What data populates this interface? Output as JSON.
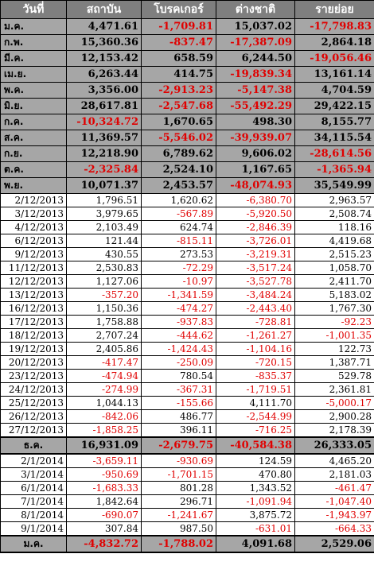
{
  "headers": [
    "วันที่",
    "สถาบัน",
    "โบรคเกอร์",
    "ต่างชาติ",
    "รายย่อย"
  ],
  "colors": {
    "header_bg": "#7f7f7f",
    "month_bg": "#a6a6a6",
    "negative": "#e00000"
  },
  "month_rows": [
    {
      "label": "ม.ค.",
      "values": [
        "4,471.61",
        "-1,709.81",
        "15,037.02",
        "-17,798.83"
      ]
    },
    {
      "label": "ก.พ.",
      "values": [
        "15,360.36",
        "-837.47",
        "-17,387.09",
        "2,864.18"
      ]
    },
    {
      "label": "มี.ค.",
      "values": [
        "12,153.42",
        "658.59",
        "6,244.50",
        "-19,056.46"
      ]
    },
    {
      "label": "เม.ย.",
      "values": [
        "6,263.44",
        "414.75",
        "-19,839.34",
        "13,161.14"
      ]
    },
    {
      "label": "พ.ค.",
      "values": [
        "3,356.00",
        "-2,913.23",
        "-5,147.38",
        "4,704.59"
      ]
    },
    {
      "label": "มิ.ย.",
      "values": [
        "28,617.81",
        "-2,547.68",
        "-55,492.29",
        "29,422.15"
      ]
    },
    {
      "label": "ก.ค.",
      "values": [
        "-10,324.72",
        "1,670.65",
        "498.30",
        "8,155.77"
      ]
    },
    {
      "label": "ส.ค.",
      "values": [
        "11,369.57",
        "-5,546.02",
        "-39,939.07",
        "34,115.54"
      ]
    },
    {
      "label": "ก.ย.",
      "values": [
        "12,218.90",
        "6,789.62",
        "9,606.02",
        "-28,614.56"
      ]
    },
    {
      "label": "ต.ค.",
      "values": [
        "-2,325.84",
        "2,524.10",
        "1,167.65",
        "-1,365.94"
      ]
    },
    {
      "label": "พ.ย.",
      "values": [
        "10,071.37",
        "2,453.57",
        "-48,074.93",
        "35,549.99"
      ]
    }
  ],
  "dec_rows": [
    {
      "label": "2/12/2013",
      "values": [
        "1,796.51",
        "1,620.62",
        "-6,380.70",
        "2,963.57"
      ]
    },
    {
      "label": "3/12/2013",
      "values": [
        "3,979.65",
        "-567.89",
        "-5,920.50",
        "2,508.74"
      ]
    },
    {
      "label": "4/12/2013",
      "values": [
        "2,103.49",
        "624.74",
        "-2,846.39",
        "118.16"
      ]
    },
    {
      "label": "6/12/2013",
      "values": [
        "121.44",
        "-815.11",
        "-3,726.01",
        "4,419.68"
      ]
    },
    {
      "label": "9/12/2013",
      "values": [
        "430.55",
        "273.53",
        "-3,219.31",
        "2,515.23"
      ]
    },
    {
      "label": "11/12/2013",
      "values": [
        "2,530.83",
        "-72.29",
        "-3,517.24",
        "1,058.70"
      ]
    },
    {
      "label": "12/12/2013",
      "values": [
        "1,127.06",
        "-10.97",
        "-3,527.78",
        "2,411.70"
      ]
    },
    {
      "label": "13/12/2013",
      "values": [
        "-357.20",
        "-1,341.59",
        "-3,484.24",
        "5,183.02"
      ]
    },
    {
      "label": "16/12/2013",
      "values": [
        "1,150.36",
        "-474.27",
        "-2,443.40",
        "1,767.30"
      ]
    },
    {
      "label": "17/12/2013",
      "values": [
        "1,758.88",
        "-937.83",
        "-728.81",
        "-92.23"
      ]
    },
    {
      "label": "18/12/2013",
      "values": [
        "2,707.24",
        "-444.62",
        "-1,261.27",
        "-1,001.35"
      ]
    },
    {
      "label": "19/12/2013",
      "values": [
        "2,405.86",
        "-1,424.43",
        "-1,104.16",
        "122.73"
      ]
    },
    {
      "label": "20/12/2013",
      "values": [
        "-417.47",
        "-250.09",
        "-720.15",
        "1,387.71"
      ]
    },
    {
      "label": "23/12/2013",
      "values": [
        "-474.94",
        "780.54",
        "-835.37",
        "529.78"
      ]
    },
    {
      "label": "24/12/2013",
      "values": [
        "-274.99",
        "-367.31",
        "-1,719.51",
        "2,361.81"
      ]
    },
    {
      "label": "25/12/2013",
      "values": [
        "1,044.13",
        "-155.66",
        "4,111.70",
        "-5,000.17"
      ]
    },
    {
      "label": "26/12/2013",
      "values": [
        "-842.06",
        "486.77",
        "-2,544.99",
        "2,900.28"
      ]
    },
    {
      "label": "27/12/2013",
      "values": [
        "-1,858.25",
        "396.11",
        "-716.25",
        "2,178.39"
      ]
    }
  ],
  "dec_total": {
    "label": "ธ.ค.",
    "values": [
      "16,931.09",
      "-2,679.75",
      "-40,584.38",
      "26,333.05"
    ]
  },
  "jan_rows": [
    {
      "label": "2/1/2014",
      "values": [
        "-3,659.11",
        "-930.69",
        "124.59",
        "4,465.20"
      ]
    },
    {
      "label": "3/1/2014",
      "values": [
        "-950.69",
        "-1,701.15",
        "470.80",
        "2,181.03"
      ]
    },
    {
      "label": "6/1/2014",
      "values": [
        "-1,683.33",
        "801.28",
        "1,343.52",
        "-461.47"
      ]
    },
    {
      "label": "7/1/2014",
      "values": [
        "1,842.64",
        "296.71",
        "-1,091.94",
        "-1,047.40"
      ]
    },
    {
      "label": "8/1/2014",
      "values": [
        "-690.07",
        "-1,241.67",
        "3,875.72",
        "-1,943.97"
      ]
    },
    {
      "label": "9/1/2014",
      "values": [
        "307.84",
        "987.50",
        "-631.01",
        "-664.33"
      ]
    }
  ],
  "jan_total": {
    "label": "ม.ค.",
    "values": [
      "-4,832.72",
      "-1,788.02",
      "4,091.68",
      "2,529.06"
    ]
  }
}
